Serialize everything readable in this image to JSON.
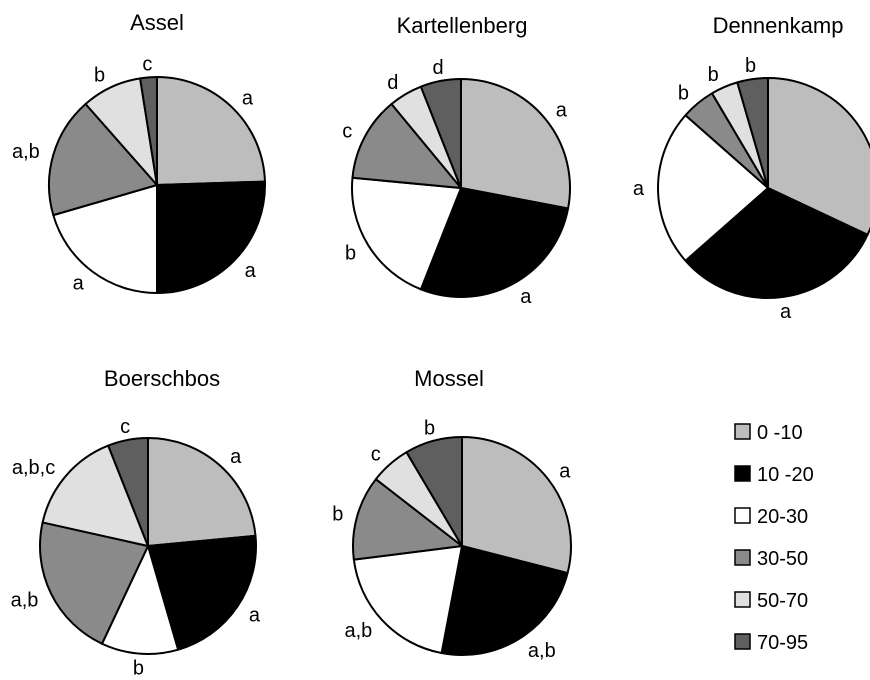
{
  "chart_data": [
    {
      "type": "pie",
      "title": "Assel",
      "categories": [
        "0 -10",
        "10 -20",
        "20-30",
        "30-50",
        "50-70",
        "70-95"
      ],
      "values": [
        24.5,
        25.5,
        20.5,
        18.0,
        9.0,
        2.5
      ],
      "slice_labels": [
        "a",
        "a",
        "a",
        "a,b",
        "b",
        "c"
      ]
    },
    {
      "type": "pie",
      "title": "Kartellenberg",
      "categories": [
        "0 -10",
        "10 -20",
        "20-30",
        "30-50",
        "50-70",
        "70-95"
      ],
      "values": [
        28.0,
        28.0,
        20.5,
        12.5,
        5.0,
        6.0
      ],
      "slice_labels": [
        "a",
        "a",
        "b",
        "c",
        "d",
        "d"
      ]
    },
    {
      "type": "pie",
      "title": "Dennenkamp",
      "categories": [
        "0 -10",
        "10 -20",
        "20-30",
        "30-50",
        "50-70",
        "70-95"
      ],
      "values": [
        32.0,
        31.5,
        23.0,
        5.0,
        4.0,
        4.5
      ],
      "slice_labels": [
        "a",
        "a",
        "a",
        "b",
        "b",
        "b"
      ]
    },
    {
      "type": "pie",
      "title": "Boerschbos",
      "categories": [
        "0 -10",
        "10 -20",
        "20-30",
        "30-50",
        "50-70",
        "70-95"
      ],
      "values": [
        23.5,
        22.0,
        11.5,
        21.5,
        15.5,
        6.0
      ],
      "slice_labels": [
        "a",
        "a",
        "b",
        "a,b",
        "a,b,c",
        "c"
      ]
    },
    {
      "type": "pie",
      "title": "Mossel",
      "categories": [
        "0 -10",
        "10 -20",
        "20-30",
        "30-50",
        "50-70",
        "70-95"
      ],
      "values": [
        29.0,
        24.0,
        20.0,
        12.5,
        6.0,
        8.5
      ],
      "slice_labels": [
        "a",
        "a,b",
        "a,b",
        "b",
        "c",
        "b"
      ]
    }
  ],
  "legend": [
    {
      "label": "0 -10",
      "color": "#bdbdbd"
    },
    {
      "label": "10 -20",
      "color": "#000000"
    },
    {
      "label": "20-30",
      "color": "#ffffff"
    },
    {
      "label": "30-50",
      "color": "#8a8a8a"
    },
    {
      "label": "50-70",
      "color": "#e0e0e0"
    },
    {
      "label": "70-95",
      "color": "#5f5f5f"
    }
  ]
}
